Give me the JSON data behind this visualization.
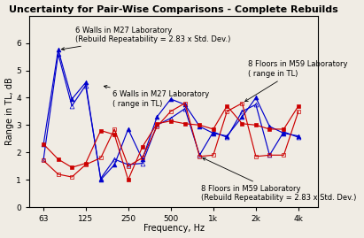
{
  "title": "Uncertainty for Pair-Wise Comparisons - Complete Rebuilds",
  "xlabel": "Frequency, Hz",
  "ylabel": "Range in TL, dB",
  "freq_ticks": [
    63,
    125,
    250,
    500,
    1000,
    2000,
    4000
  ],
  "ylim": [
    0,
    7
  ],
  "yticks": [
    0,
    1,
    2,
    3,
    4,
    5,
    6
  ],
  "x_pts": [
    63,
    80,
    100,
    125,
    160,
    200,
    250,
    315,
    400,
    500,
    630,
    800,
    1000,
    1250,
    1600,
    2000,
    2500,
    3150,
    4000
  ],
  "blue_filled": [
    2.3,
    5.75,
    3.95,
    4.55,
    1.0,
    1.55,
    2.85,
    1.75,
    3.3,
    3.95,
    3.75,
    2.95,
    2.7,
    2.6,
    3.3,
    4.0,
    2.95,
    2.7,
    2.6
  ],
  "blue_open": [
    1.75,
    5.6,
    3.7,
    4.45,
    1.05,
    1.75,
    1.55,
    1.6,
    3.0,
    3.25,
    3.6,
    1.9,
    2.75,
    2.55,
    3.5,
    3.75,
    1.9,
    2.75,
    2.55
  ],
  "red_filled": [
    2.3,
    1.75,
    1.45,
    1.6,
    2.8,
    2.65,
    1.0,
    2.2,
    3.05,
    3.15,
    3.05,
    3.0,
    2.85,
    3.7,
    3.05,
    3.0,
    2.85,
    2.85,
    3.7
  ],
  "red_open": [
    1.7,
    1.2,
    1.1,
    1.55,
    1.8,
    2.85,
    1.5,
    1.8,
    2.95,
    3.5,
    3.8,
    1.85,
    1.9,
    3.5,
    3.8,
    1.85,
    1.9,
    1.9,
    3.5
  ],
  "blue_color": "#0000cc",
  "red_color": "#cc0000",
  "title_fontsize": 8,
  "axis_fontsize": 7,
  "tick_fontsize": 6.5,
  "annot_fontsize": 6.0,
  "bg_color": "#f0ece4"
}
